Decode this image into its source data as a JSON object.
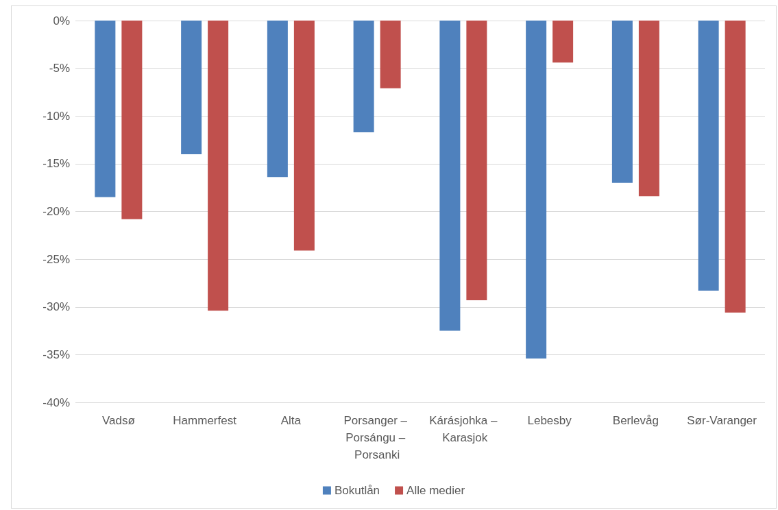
{
  "chart_data": {
    "type": "bar",
    "categories": [
      "Vadsø",
      "Hammerfest",
      "Alta",
      "Porsanger – Porsángu – Porsanki",
      "Kárásjohka – Karasjok",
      "Lebesby",
      "Berlevåg",
      "Sør-Varanger"
    ],
    "series": [
      {
        "name": "Bokutlån",
        "color": "#4f81bd",
        "values": [
          -18.5,
          -14.0,
          -16.4,
          -11.7,
          -32.5,
          -35.4,
          -17.0,
          -28.3
        ]
      },
      {
        "name": "Alle medier",
        "color": "#c0504d",
        "values": [
          -20.8,
          -30.4,
          -24.1,
          -7.1,
          -29.3,
          -4.4,
          -18.4,
          -30.6
        ]
      }
    ],
    "ylim": [
      -40,
      0
    ],
    "yticks": [
      {
        "value": -40,
        "label": "-40%"
      },
      {
        "value": -35,
        "label": "-35%"
      },
      {
        "value": -30,
        "label": "-30%"
      },
      {
        "value": -25,
        "label": "-25%"
      },
      {
        "value": -20,
        "label": "-20%"
      },
      {
        "value": -15,
        "label": "-15%"
      },
      {
        "value": -10,
        "label": "-10%"
      },
      {
        "value": -5,
        "label": "-5%"
      },
      {
        "value": 0,
        "label": "0%"
      }
    ],
    "grid": "y",
    "legend": "bottom"
  }
}
